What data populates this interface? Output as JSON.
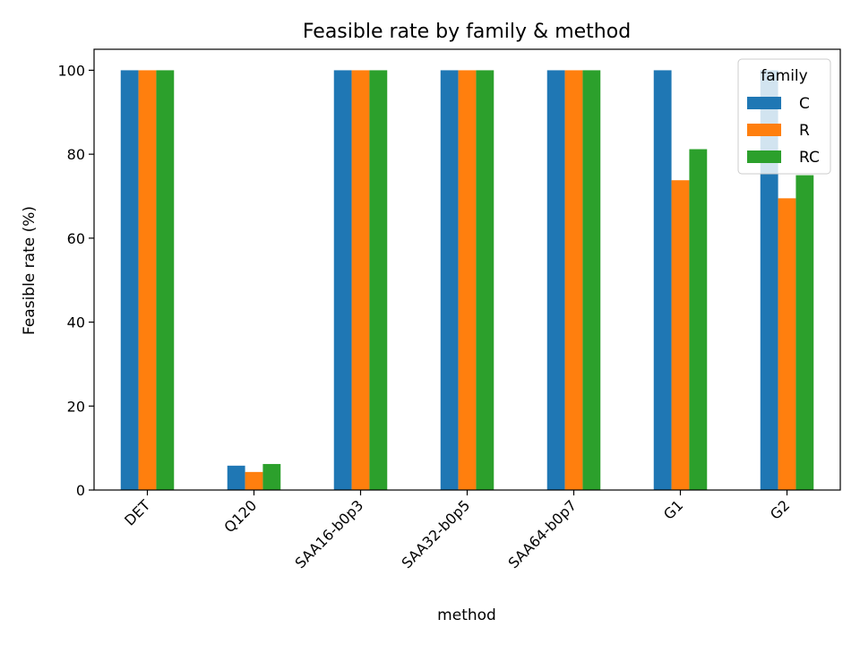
{
  "chart_data": {
    "type": "bar",
    "title": "Feasible rate by family & method",
    "xlabel": "method",
    "ylabel": "Feasible rate (%)",
    "ylim": [
      0,
      105
    ],
    "yticks": [
      0,
      20,
      40,
      60,
      80,
      100
    ],
    "categories": [
      "DET",
      "Q120",
      "SAA16-b0p3",
      "SAA32-b0p5",
      "SAA64-b0p7",
      "G1",
      "G2"
    ],
    "series": [
      {
        "name": "C",
        "color": "#1f77b4",
        "values": [
          100,
          5.8,
          100,
          100,
          100,
          100,
          100
        ]
      },
      {
        "name": "R",
        "color": "#ff7f0e",
        "values": [
          100,
          4.3,
          100,
          100,
          100,
          73.8,
          69.5
        ]
      },
      {
        "name": "RC",
        "color": "#2ca02c",
        "values": [
          100,
          6.2,
          100,
          100,
          100,
          81.2,
          75.0
        ]
      }
    ],
    "legend": {
      "title": "family",
      "placement": "top-right"
    },
    "grid": false
  }
}
